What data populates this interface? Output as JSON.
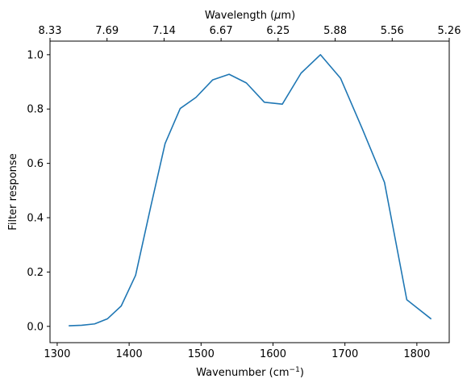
{
  "chart_data": {
    "type": "line",
    "xlabel_main": "Wavenumber (cm",
    "xlabel_sup": "−1",
    "xlabel_close": ")",
    "top_xlabel_main": "Wavelength (",
    "top_xlabel_mu": "μ",
    "top_xlabel_rest": "m)",
    "ylabel": "Filter response",
    "xlim": [
      1290,
      1845
    ],
    "ylim": [
      -0.06,
      1.05
    ],
    "x_ticks": [
      1300,
      1400,
      1500,
      1600,
      1700,
      1800
    ],
    "x_tick_labels": [
      "1300",
      "1400",
      "1500",
      "1600",
      "1700",
      "1800"
    ],
    "y_ticks": [
      0.0,
      0.2,
      0.4,
      0.6,
      0.8,
      1.0
    ],
    "y_tick_labels": [
      "0.0",
      "0.2",
      "0.4",
      "0.6",
      "0.8",
      "1.0"
    ],
    "top_ticks": [
      {
        "wavenumber": 1200,
        "label": "8.33"
      },
      {
        "wavenumber": 1300,
        "label": "7.69"
      },
      {
        "wavenumber": 1400,
        "label": "7.14"
      },
      {
        "wavenumber": 1500,
        "label": "6.67"
      },
      {
        "wavenumber": 1600,
        "label": "6.25"
      },
      {
        "wavenumber": 1700,
        "label": "5.88"
      },
      {
        "wavenumber": 1800,
        "label": "5.56"
      },
      {
        "wavenumber": 1900,
        "label": "5.26"
      }
    ],
    "series": [
      {
        "color": "#1f77b4",
        "x": [
          1316,
          1334,
          1352,
          1370,
          1389,
          1409,
          1430,
          1450,
          1471,
          1493,
          1516,
          1539,
          1563,
          1588,
          1613,
          1639,
          1666,
          1694,
          1724,
          1755,
          1786,
          1820
        ],
        "y": [
          0.002,
          0.004,
          0.009,
          0.028,
          0.075,
          0.188,
          0.44,
          0.673,
          0.802,
          0.843,
          0.907,
          0.928,
          0.896,
          0.825,
          0.818,
          0.932,
          1.0,
          0.913,
          0.728,
          0.53,
          0.098,
          0.027
        ]
      }
    ],
    "grid": false
  }
}
